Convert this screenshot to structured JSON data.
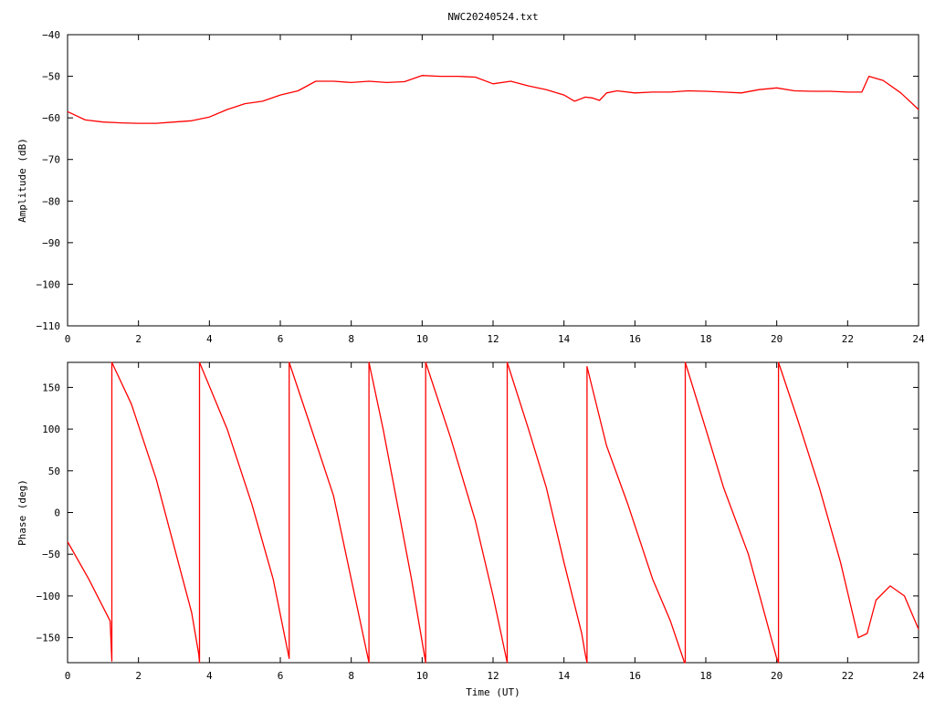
{
  "chart_data": [
    {
      "type": "line",
      "title": "NWC20240524.txt",
      "xlabel": "",
      "ylabel": "Amplitude (dB)",
      "xlim": [
        0,
        24
      ],
      "ylim": [
        -110,
        -40
      ],
      "xticks": [
        0,
        2,
        4,
        6,
        8,
        10,
        12,
        14,
        16,
        18,
        20,
        22,
        24
      ],
      "yticks": [
        -110,
        -100,
        -90,
        -80,
        -70,
        -60,
        -50,
        -40
      ],
      "xtick_labels": [
        "0",
        "2",
        "4",
        "6",
        "8",
        "10",
        "12",
        "14",
        "16",
        "18",
        "20",
        "22",
        "24"
      ],
      "ytick_labels": [
        "−110",
        "−100",
        "−90",
        "−80",
        "−70",
        "−60",
        "−50",
        "−40"
      ],
      "grid": false,
      "color": "#ff0000",
      "x": [
        0,
        0.5,
        1,
        1.5,
        2,
        2.5,
        3,
        3.5,
        4,
        4.5,
        5,
        5.5,
        6,
        6.5,
        7,
        7.5,
        8,
        8.5,
        9,
        9.5,
        10,
        10.5,
        11,
        11.5,
        12,
        12.5,
        13,
        13.5,
        14,
        14.3,
        14.6,
        14.8,
        15,
        15.2,
        15.5,
        16,
        16.5,
        17,
        17.5,
        18,
        18.5,
        19,
        19.5,
        20,
        20.5,
        21,
        21.5,
        22,
        22.4,
        22.6,
        23,
        23.5,
        24
      ],
      "y": [
        -58.5,
        -60.5,
        -61,
        -61.2,
        -61.3,
        -61.3,
        -61,
        -60.7,
        -59.8,
        -58,
        -56.6,
        -56,
        -54.5,
        -53.5,
        -51.2,
        -51.2,
        -51.5,
        -51.2,
        -51.5,
        -51.3,
        -49.8,
        -50,
        -50,
        -50.2,
        -51.8,
        -51.2,
        -52.3,
        -53.2,
        -54.5,
        -56,
        -55,
        -55.2,
        -55.8,
        -54,
        -53.5,
        -54,
        -53.8,
        -53.8,
        -53.5,
        -53.6,
        -53.8,
        -54,
        -53.2,
        -52.8,
        -53.5,
        -53.6,
        -53.6,
        -53.8,
        -53.8,
        -50,
        -51,
        -54,
        -58
      ]
    },
    {
      "type": "line",
      "title": "",
      "xlabel": "Time (UT)",
      "ylabel": "Phase (deg)",
      "xlim": [
        0,
        24
      ],
      "ylim": [
        -180,
        180
      ],
      "xticks": [
        0,
        2,
        4,
        6,
        8,
        10,
        12,
        14,
        16,
        18,
        20,
        22,
        24
      ],
      "yticks": [
        -150,
        -100,
        -50,
        0,
        50,
        100,
        150
      ],
      "xtick_labels": [
        "0",
        "2",
        "4",
        "6",
        "8",
        "10",
        "12",
        "14",
        "16",
        "18",
        "20",
        "22",
        "24"
      ],
      "ytick_labels": [
        "−150",
        "−100",
        "−50",
        "0",
        "50",
        "100",
        "150"
      ],
      "grid": false,
      "color": "#ff0000",
      "x": [
        0,
        0.6,
        1.2,
        1.25,
        1.25,
        1.8,
        2.5,
        3.0,
        3.5,
        3.7,
        3.72,
        3.72,
        4.5,
        5.2,
        5.8,
        6.25,
        6.25,
        6.8,
        7.5,
        8.0,
        8.5,
        8.5,
        8.9,
        9.3,
        9.7,
        10.1,
        10.1,
        10.8,
        11.5,
        12.0,
        12.4,
        12.4,
        13.0,
        13.5,
        14.0,
        14.5,
        14.6,
        14.65,
        14.65,
        15.2,
        15.8,
        16.5,
        17.0,
        17.4,
        17.42,
        17.42,
        18.0,
        18.5,
        19.2,
        20.0,
        20.05,
        20.05,
        20.6,
        21.2,
        21.8,
        22.3,
        22.55,
        22.8,
        23.2,
        23.6,
        24.0
      ],
      "y": [
        -35,
        -80,
        -130,
        -178,
        180,
        130,
        40,
        -40,
        -120,
        -170,
        -180,
        180,
        100,
        10,
        -80,
        -175,
        180,
        110,
        20,
        -80,
        -180,
        180,
        100,
        10,
        -80,
        -180,
        180,
        90,
        -10,
        -100,
        -180,
        180,
        100,
        30,
        -60,
        -145,
        -170,
        -180,
        175,
        80,
        10,
        -80,
        -130,
        -180,
        -180,
        180,
        100,
        30,
        -50,
        -175,
        -180,
        180,
        110,
        30,
        -60,
        -150,
        -145,
        -105,
        -88,
        -100,
        -140
      ]
    }
  ]
}
